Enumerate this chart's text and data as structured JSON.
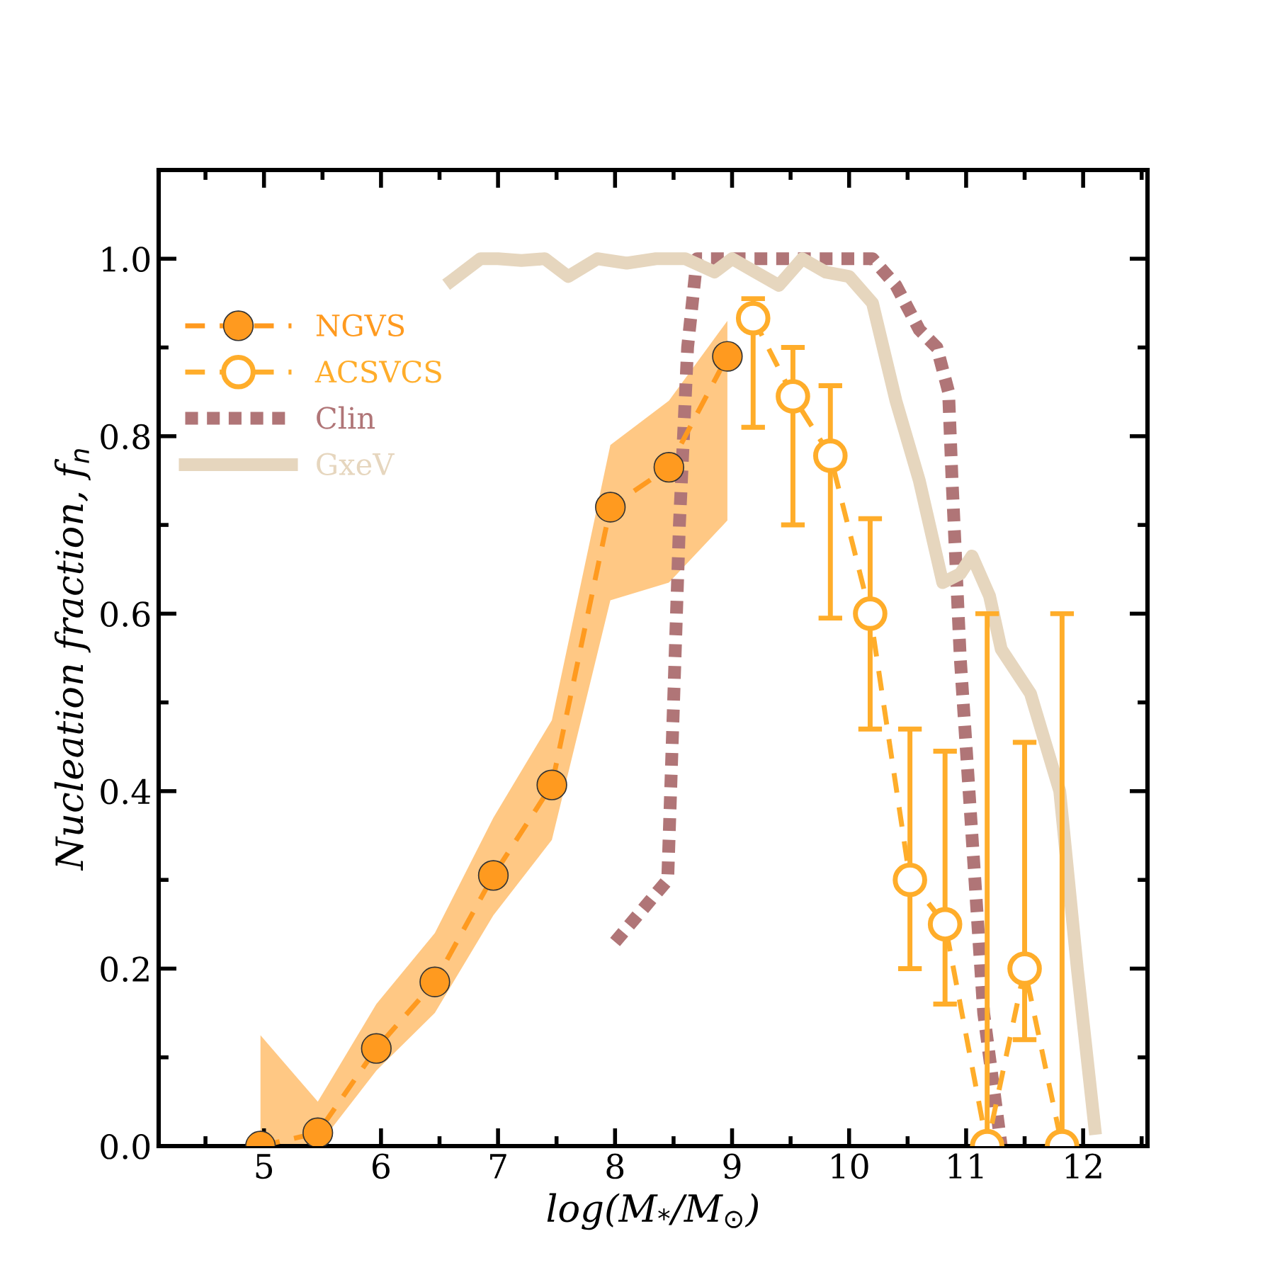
{
  "chart_data": {
    "type": "line",
    "xlabel": "log(M$_{*}$/M$_{⊙}$)",
    "ylabel": "Nucleation fraction, f$_{n}$",
    "xlim": [
      4.1,
      12.55
    ],
    "ylim": [
      0,
      1.1
    ],
    "xticks": [
      5,
      6,
      7,
      8,
      9,
      10,
      11,
      12
    ],
    "yticks": [
      {
        "value": 0,
        "label": "0.0"
      },
      {
        "value": 0.2,
        "label": "0.2"
      },
      {
        "value": 0.4,
        "label": "0.4"
      },
      {
        "value": 0.6,
        "label": "0.6"
      },
      {
        "value": 0.8,
        "label": "0.8"
      },
      {
        "value": 1.0,
        "label": "1.0"
      }
    ],
    "legend": "top left",
    "series": [
      {
        "name": "NGVS",
        "color": "#ff9a1f",
        "marker": "circle",
        "line_style": "dashed",
        "x": [
          4.97,
          5.46,
          5.96,
          6.46,
          6.96,
          7.46,
          7.96,
          8.46,
          8.96
        ],
        "values": [
          0.0,
          0.015,
          0.11,
          0.185,
          0.305,
          0.407,
          0.72,
          0.765,
          0.89
        ],
        "lower": [
          0.0,
          0.0,
          0.085,
          0.15,
          0.26,
          0.345,
          0.615,
          0.635,
          0.705
        ],
        "upper": [
          0.125,
          0.05,
          0.16,
          0.24,
          0.37,
          0.48,
          0.79,
          0.84,
          0.93
        ]
      },
      {
        "name": "ACSVCS",
        "color": "#ffad2a",
        "marker": "circle",
        "line_style": "dashed",
        "x": [
          9.18,
          9.52,
          9.84,
          10.18,
          10.52,
          10.82,
          11.18,
          11.5,
          11.82
        ],
        "values": [
          0.933,
          0.845,
          0.778,
          0.6,
          0.3,
          0.25,
          0.0,
          0.2,
          0.0
        ],
        "errors": [
          [
            0.81,
            0.955
          ],
          [
            0.7,
            0.9
          ],
          [
            0.595,
            0.857
          ],
          [
            0.47,
            0.707
          ],
          [
            0.2,
            0.47
          ],
          [
            0.16,
            0.445
          ],
          [
            0.0,
            0.6
          ],
          [
            0.12,
            0.455
          ],
          [
            0.0,
            0.6
          ]
        ]
      },
      {
        "name": "Clin",
        "color": "#b07577",
        "line_style": "dotted",
        "x": [
          8.0,
          8.45,
          8.5,
          8.55,
          8.62,
          8.7,
          9.0,
          10.2,
          10.4,
          10.6,
          10.75,
          10.85,
          10.88,
          10.95,
          11.05,
          11.15,
          11.3
        ],
        "values": [
          0.23,
          0.3,
          0.5,
          0.7,
          0.9,
          1.0,
          1.0,
          1.0,
          0.97,
          0.92,
          0.9,
          0.85,
          0.75,
          0.55,
          0.35,
          0.15,
          0.0
        ]
      },
      {
        "name": "GxeV",
        "color": "#e6d6be",
        "line_style": "solid",
        "x": [
          6.6,
          6.85,
          7.0,
          7.2,
          7.4,
          7.6,
          7.85,
          8.1,
          8.35,
          8.6,
          8.85,
          9.0,
          9.2,
          9.4,
          9.6,
          9.8,
          10.0,
          10.2,
          10.4,
          10.6,
          10.8,
          10.95,
          11.05,
          11.2,
          11.3,
          11.55,
          11.8,
          11.95,
          12.1
        ],
        "values": [
          0.975,
          1.0,
          1.0,
          0.998,
          1.0,
          0.98,
          1.0,
          0.995,
          1.0,
          1.0,
          0.985,
          1.0,
          0.985,
          0.97,
          1.0,
          0.985,
          0.98,
          0.95,
          0.84,
          0.75,
          0.635,
          0.645,
          0.665,
          0.62,
          0.56,
          0.51,
          0.4,
          0.2,
          0.02
        ]
      }
    ]
  }
}
